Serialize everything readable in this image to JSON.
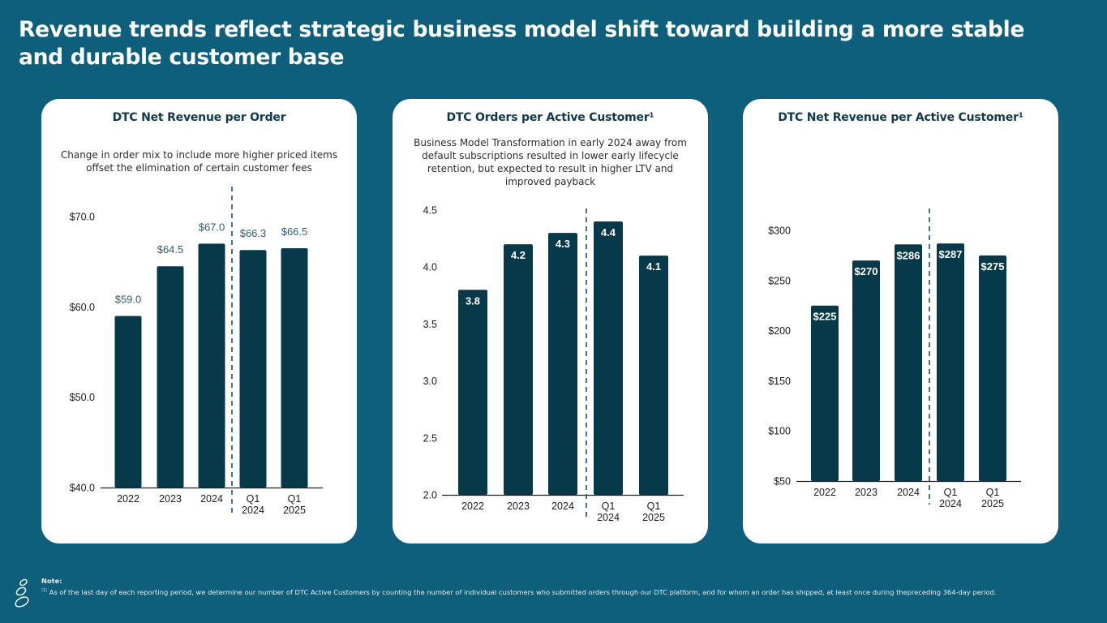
{
  "slide": {
    "title": "Revenue trends reflect strategic business model shift toward building a more stable and durable customer base",
    "note_label": "Note:",
    "note_marker": "(1)",
    "note_text": "As of the last day of each reporting period, we determine our number of DTC Active Customers by counting the number of individual customers who submitted orders through our DTC platform, and for whom an order has shipped, at least once during thepreceding 364-day period.",
    "logo_icon": "stacked-stones-logo-icon"
  },
  "colors": {
    "background": "#0d5f7b",
    "bar": "#063a4b",
    "card": "#ffffff",
    "divider": "#1e4f66"
  },
  "chart_data": [
    {
      "type": "bar",
      "title": "DTC Net Revenue per Order",
      "subtitle": "Change in order mix to include more higher priced items offset the elimination of certain customer fees",
      "categories": [
        "2022",
        "2023",
        "2024",
        "Q1\n2024",
        "Q1\n2025"
      ],
      "category_lines": [
        [
          "2022"
        ],
        [
          "2023"
        ],
        [
          "2024"
        ],
        [
          "Q1",
          "2024"
        ],
        [
          "Q1",
          "2025"
        ]
      ],
      "values": [
        59.0,
        64.5,
        67.0,
        66.3,
        66.5
      ],
      "value_labels": [
        "$59.0",
        "$64.5",
        "$67.0",
        "$66.3",
        "$66.5"
      ],
      "label_position": "outside",
      "ylim": [
        40,
        70
      ],
      "yticks": [
        40,
        50,
        60,
        70
      ],
      "ytick_labels": [
        "$40.0",
        "$50.0",
        "$60.0",
        "$70.0"
      ],
      "xlabel": "",
      "ylabel": "",
      "grid": false,
      "divider_after_index": 2
    },
    {
      "type": "bar",
      "title": "DTC Orders per Active Customer¹",
      "subtitle": "Business Model Transformation in early 2024 away from default subscriptions resulted in lower early lifecycle retention, but expected to result in higher LTV and improved payback",
      "categories": [
        "2022",
        "2023",
        "2024",
        "Q1\n2024",
        "Q1\n2025"
      ],
      "category_lines": [
        [
          "2022"
        ],
        [
          "2023"
        ],
        [
          "2024"
        ],
        [
          "Q1",
          "2024"
        ],
        [
          "Q1",
          "2025"
        ]
      ],
      "values": [
        3.8,
        4.2,
        4.3,
        4.4,
        4.1
      ],
      "value_labels": [
        "3.8",
        "4.2",
        "4.3",
        "4.4",
        "4.1"
      ],
      "label_position": "inside",
      "ylim": [
        2.0,
        4.5
      ],
      "yticks": [
        2.0,
        2.5,
        3.0,
        3.5,
        4.0,
        4.5
      ],
      "ytick_labels": [
        "2.0",
        "2.5",
        "3.0",
        "3.5",
        "4.0",
        "4.5"
      ],
      "xlabel": "",
      "ylabel": "",
      "grid": false,
      "divider_after_index": 2
    },
    {
      "type": "bar",
      "title": "DTC Net Revenue per Active Customer¹",
      "subtitle": "",
      "categories": [
        "2022",
        "2023",
        "2024",
        "Q1\n2024",
        "Q1\n2025"
      ],
      "category_lines": [
        [
          "2022"
        ],
        [
          "2023"
        ],
        [
          "2024"
        ],
        [
          "Q1",
          "2024"
        ],
        [
          "Q1",
          "2025"
        ]
      ],
      "values": [
        225,
        270,
        286,
        287,
        275
      ],
      "value_labels": [
        "$225",
        "$270",
        "$286",
        "$287",
        "$275"
      ],
      "label_position": "inside",
      "ylim": [
        50,
        300
      ],
      "yticks": [
        50,
        100,
        150,
        200,
        250,
        300
      ],
      "ytick_labels": [
        "$50",
        "$100",
        "$150",
        "$200",
        "$250",
        "$300"
      ],
      "xlabel": "",
      "ylabel": "",
      "grid": false,
      "divider_after_index": 2
    }
  ]
}
